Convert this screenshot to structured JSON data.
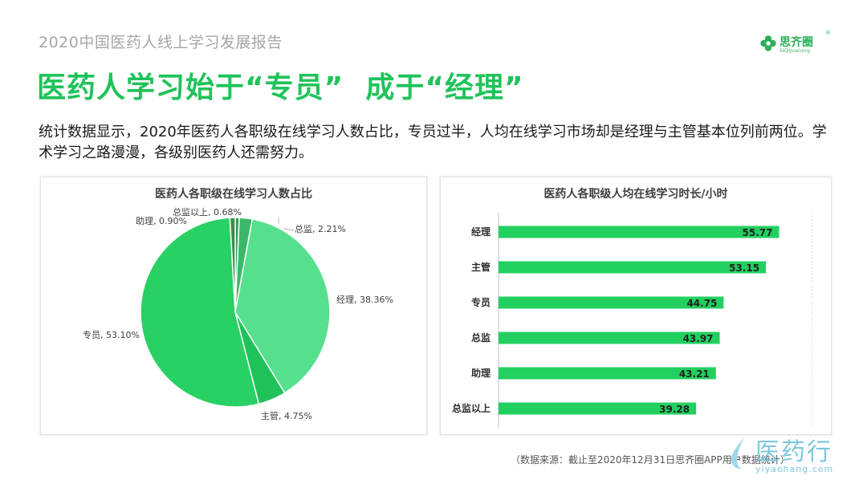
{
  "header": {
    "report_name": "2020中国医药人线上学习发展报告",
    "logo": {
      "name": "思齐圈",
      "sub": "SIQIJuanorg",
      "registered": "®"
    }
  },
  "headline": "医药人学习始于“专员”  成于“经理”",
  "intro": "统计数据显示，2020年医药人各职级在线学习人数占比，专员过半，人均在线学习市场却是经理与主管基本位列前两位。学术学习之路漫漫，各级别医药人还需努力。",
  "colors": {
    "accent": "#1fc35a",
    "pie": [
      "#2e9e4f",
      "#3ab86a",
      "#56e08e",
      "#1fc35a",
      "#29d063",
      "#3b8d4a"
    ],
    "bar": "#22d060"
  },
  "chart_data": [
    {
      "type": "pie",
      "title": "医药人各职级在线学习人数占比",
      "slices": [
        {
          "name": "总监以上",
          "value": 0.68,
          "label": "总监以上, 0.68%"
        },
        {
          "name": "总监",
          "value": 2.21,
          "label": "总监, 2.21%"
        },
        {
          "name": "经理",
          "value": 38.36,
          "label": "经理, 38.36%"
        },
        {
          "name": "主管",
          "value": 4.75,
          "label": "主管, 4.75%"
        },
        {
          "name": "专员",
          "value": 53.1,
          "label": "专员, 53.10%"
        },
        {
          "name": "助理",
          "value": 0.9,
          "label": "助理, 0.90%"
        }
      ]
    },
    {
      "type": "bar",
      "orientation": "horizontal",
      "title": "医药人各职级人均在线学习时长/小时",
      "categories": [
        "经理",
        "主管",
        "专员",
        "总监",
        "助理",
        "总监以上"
      ],
      "values": [
        55.77,
        53.15,
        44.75,
        43.97,
        43.21,
        39.28
      ],
      "value_labels": [
        "55.77",
        "53.15",
        "44.75",
        "43.97",
        "43.21",
        "39.28"
      ]
    }
  ],
  "footer": {
    "source": "（数据来源：截止至2020年12月31日思齐圈APP用户数据统计）"
  },
  "watermark": {
    "cn": "医药行",
    "en": "yiyaohang.com"
  }
}
